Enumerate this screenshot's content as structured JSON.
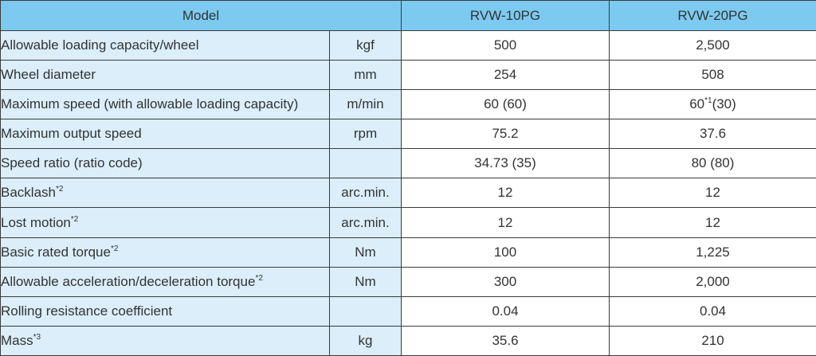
{
  "header": {
    "model_label": "Model",
    "models": [
      "RVW-10PG",
      "RVW-20PG"
    ]
  },
  "rows": [
    {
      "label": "Allowable loading capacity/wheel",
      "note": "",
      "unit": "kgf",
      "v1": "500",
      "v1_note": "",
      "v1_suffix": "",
      "v2": "2,500",
      "v2_note": "",
      "v2_suffix": ""
    },
    {
      "label": "Wheel diameter",
      "note": "",
      "unit": "mm",
      "v1": "254",
      "v1_note": "",
      "v1_suffix": "",
      "v2": "508",
      "v2_note": "",
      "v2_suffix": ""
    },
    {
      "label": "Maximum speed (with allowable loading capacity)",
      "note": "",
      "unit": "m/min",
      "v1": "60 (60)",
      "v1_note": "",
      "v1_suffix": "",
      "v2": "60",
      "v2_note": "*1",
      "v2_suffix": "(30)"
    },
    {
      "label": "Maximum output speed",
      "note": "",
      "unit": "rpm",
      "v1": "75.2",
      "v1_note": "",
      "v1_suffix": "",
      "v2": "37.6",
      "v2_note": "",
      "v2_suffix": ""
    },
    {
      "label": "Speed ratio (ratio code)",
      "note": "",
      "unit": "",
      "v1": "34.73 (35)",
      "v1_note": "",
      "v1_suffix": "",
      "v2": "80 (80)",
      "v2_note": "",
      "v2_suffix": ""
    },
    {
      "label": "Backlash",
      "note": "*2",
      "unit": "arc.min.",
      "v1": "12",
      "v1_note": "",
      "v1_suffix": "",
      "v2": "12",
      "v2_note": "",
      "v2_suffix": ""
    },
    {
      "label": "Lost motion",
      "note": "*2",
      "unit": "arc.min.",
      "v1": "12",
      "v1_note": "",
      "v1_suffix": "",
      "v2": "12",
      "v2_note": "",
      "v2_suffix": ""
    },
    {
      "label": "Basic rated torque",
      "note": "*2",
      "unit": "Nm",
      "v1": "100",
      "v1_note": "",
      "v1_suffix": "",
      "v2": "1,225",
      "v2_note": "",
      "v2_suffix": ""
    },
    {
      "label": "Allowable acceleration/deceleration torque",
      "note": "*2",
      "unit": "Nm",
      "v1": "300",
      "v1_note": "",
      "v1_suffix": "",
      "v2": "2,000",
      "v2_note": "",
      "v2_suffix": ""
    },
    {
      "label": "Rolling resistance coefficient",
      "note": "",
      "unit": "",
      "v1": "0.04",
      "v1_note": "",
      "v1_suffix": "",
      "v2": "0.04",
      "v2_note": "",
      "v2_suffix": ""
    },
    {
      "label": "Mass",
      "note": "*3",
      "unit": "kg",
      "v1": "35.6",
      "v1_note": "",
      "v1_suffix": "",
      "v2": "210",
      "v2_note": "",
      "v2_suffix": ""
    }
  ],
  "colors": {
    "header_bg": "#7ccaf0",
    "label_bg": "#dbeefa",
    "value_bg": "#ffffff",
    "border": "#3a3a3a"
  }
}
